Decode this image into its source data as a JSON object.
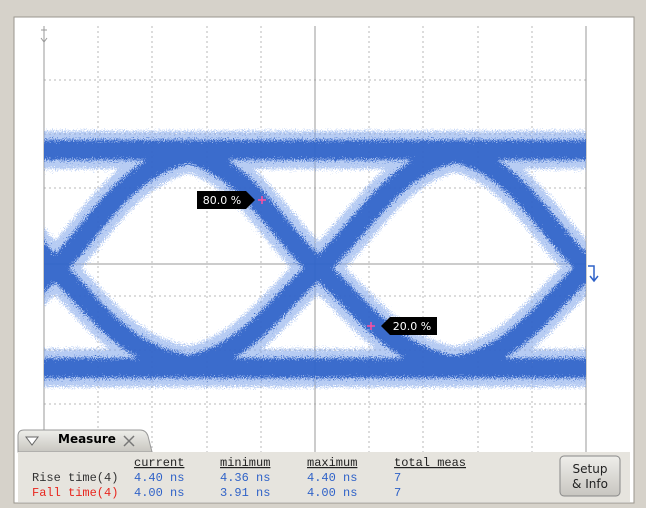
{
  "markers": [
    {
      "label": "80.0 %"
    },
    {
      "label": "20.0 %"
    }
  ],
  "measure_panel": {
    "title": "Measure",
    "columns": [
      "current",
      "minimum",
      "maximum",
      "total meas"
    ],
    "rows": [
      {
        "name": "Rise time(4)",
        "cells": [
          "4.40 ns",
          "4.36 ns",
          "4.40 ns",
          "7"
        ]
      },
      {
        "name": "Fall time(4)",
        "cells": [
          "4.00 ns",
          "3.91 ns",
          "4.00 ns",
          "7"
        ]
      }
    ],
    "button": [
      "Setup",
      "& Info"
    ]
  }
}
